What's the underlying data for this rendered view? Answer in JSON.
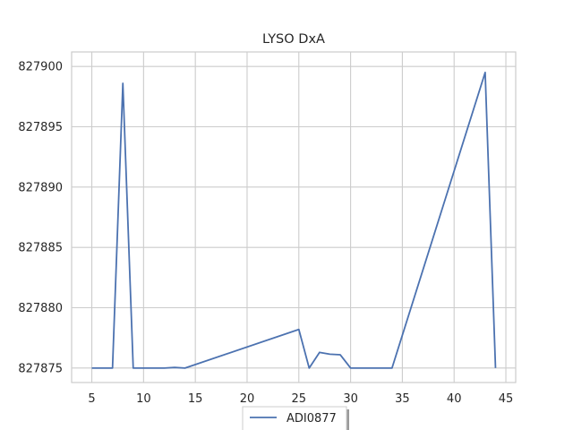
{
  "chart_data": {
    "type": "line",
    "title": "LYSO DxA",
    "xlabel": "",
    "ylabel": "",
    "xlim": [
      3.05,
      45.95
    ],
    "ylim": [
      827873.8,
      827901.2
    ],
    "xticks": [
      5,
      10,
      15,
      20,
      25,
      30,
      35,
      40,
      45
    ],
    "yticks": [
      827875,
      827880,
      827885,
      827890,
      827895,
      827900
    ],
    "grid": true,
    "legend_position": "bottom-center",
    "series": [
      {
        "name": "ADI0877",
        "color": "#4c72b0",
        "x": [
          5,
          6,
          7,
          8,
          9,
          10,
          11,
          12,
          13,
          14,
          25,
          26,
          27,
          28,
          29,
          30,
          31,
          32,
          33,
          34,
          43,
          44
        ],
        "y": [
          827875.0,
          827875.0,
          827875.0,
          827898.6,
          827875.0,
          827875.0,
          827875.0,
          827875.0,
          827875.05,
          827875.0,
          827878.2,
          827875.0,
          827876.3,
          827876.15,
          827876.1,
          827875.0,
          827875.0,
          827875.0,
          827875.0,
          827875.0,
          827899.5,
          827875.0
        ]
      }
    ]
  }
}
